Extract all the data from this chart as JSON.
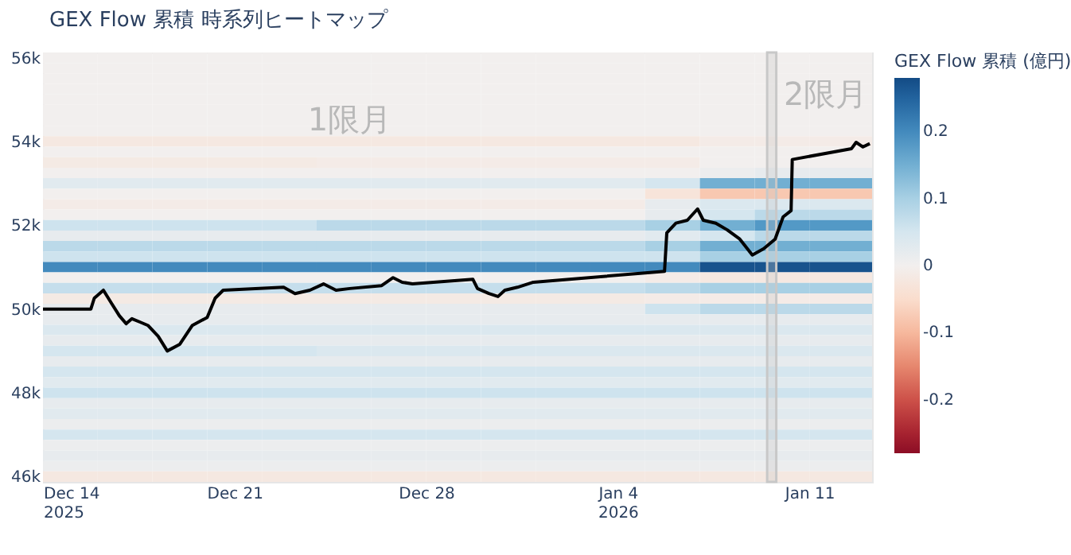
{
  "chart_data": {
    "type": "heatmap",
    "title": "GEX Flow 累積 時系列ヒートマップ",
    "clabel": "GEX Flow 累積 (億円)",
    "x": [
      "2025-12-15",
      "2025-12-17",
      "2025-12-19",
      "2025-12-21",
      "2025-12-23",
      "2025-12-25",
      "2025-12-27",
      "2025-12-29",
      "2025-12-31",
      "2026-01-02",
      "2026-01-04",
      "2026-01-06",
      "2026-01-08",
      "2026-01-10",
      "2026-01-12"
    ],
    "y": [
      56000,
      55750,
      55500,
      55250,
      55000,
      54750,
      54500,
      54250,
      54000,
      53750,
      53500,
      53250,
      53000,
      52750,
      52500,
      52250,
      52000,
      51750,
      51500,
      51250,
      51000,
      50750,
      50500,
      50250,
      50000,
      49750,
      49500,
      49250,
      49000,
      48750,
      48500,
      48250,
      48000,
      47750,
      47500,
      47250,
      47000,
      46750,
      46500,
      46250,
      46000
    ],
    "cells": [
      [
        0,
        0,
        0,
        0,
        0,
        0,
        0,
        0,
        0,
        0,
        0,
        0,
        0,
        0,
        0
      ],
      [
        0,
        0,
        0,
        0,
        0,
        0,
        0,
        0,
        0,
        0,
        0,
        0,
        0,
        0,
        0
      ],
      [
        0,
        0,
        0,
        0,
        0,
        0,
        0,
        0,
        0,
        0,
        0,
        0,
        0,
        0,
        0
      ],
      [
        0,
        0,
        0,
        0,
        0,
        0,
        0,
        0,
        0,
        0,
        0,
        0,
        0,
        0,
        0
      ],
      [
        0,
        0,
        0,
        0,
        0,
        0,
        0,
        0,
        0,
        0,
        0,
        0,
        0,
        0,
        0
      ],
      [
        0,
        0,
        0,
        0,
        0,
        0,
        0,
        0,
        0,
        0,
        0,
        0,
        0,
        0,
        0
      ],
      [
        0,
        0,
        0,
        0,
        0,
        0,
        0,
        0,
        0,
        0,
        0,
        0,
        0,
        0,
        0
      ],
      [
        0,
        0,
        0,
        0,
        0,
        0,
        0,
        0,
        0,
        0,
        0,
        0,
        0,
        0,
        0
      ],
      [
        -0.02,
        -0.02,
        -0.02,
        -0.02,
        -0.02,
        -0.02,
        -0.02,
        -0.02,
        -0.02,
        -0.02,
        -0.02,
        -0.02,
        -0.01,
        -0.01,
        -0.01
      ],
      [
        0,
        0,
        0,
        0,
        0,
        0,
        0,
        0,
        0,
        0,
        0,
        0,
        0,
        0,
        0
      ],
      [
        -0.015,
        -0.015,
        -0.015,
        -0.015,
        -0.015,
        -0.01,
        -0.01,
        -0.01,
        -0.01,
        -0.01,
        -0.01,
        -0.01,
        0,
        0,
        0
      ],
      [
        0,
        0,
        0,
        0,
        0,
        0,
        0,
        0,
        0,
        0,
        0,
        0,
        0.01,
        0.02,
        0.02
      ],
      [
        0.03,
        0.03,
        0.03,
        0.03,
        0.03,
        0.03,
        0.03,
        0.03,
        0.03,
        0.03,
        0.03,
        0.05,
        0.15,
        0.15,
        0.15
      ],
      [
        0,
        0,
        0,
        0,
        0,
        0,
        0,
        0,
        0,
        0,
        0,
        -0.03,
        -0.08,
        -0.08,
        -0.08
      ],
      [
        -0.01,
        -0.01,
        -0.01,
        -0.01,
        -0.01,
        -0.01,
        -0.01,
        -0.01,
        -0.01,
        -0.01,
        -0.01,
        0.02,
        0.04,
        0.04,
        0.04
      ],
      [
        0,
        0,
        0,
        0,
        0,
        0,
        0,
        0,
        0,
        0,
        0,
        0.02,
        0.05,
        0.08,
        0.08
      ],
      [
        0.06,
        0.06,
        0.06,
        0.06,
        0.06,
        0.08,
        0.08,
        0.08,
        0.08,
        0.08,
        0.08,
        0.1,
        0.15,
        0.18,
        0.18
      ],
      [
        0.02,
        0.02,
        0.02,
        0.02,
        0.02,
        0.02,
        0.02,
        0.02,
        0.02,
        0.02,
        0.02,
        0.03,
        0.05,
        0.08,
        0.08
      ],
      [
        0.08,
        0.08,
        0.08,
        0.08,
        0.08,
        0.08,
        0.08,
        0.08,
        0.08,
        0.08,
        0.08,
        0.1,
        0.15,
        0.15,
        0.15
      ],
      [
        0.06,
        0.06,
        0.06,
        0.06,
        0.06,
        0.06,
        0.06,
        0.06,
        0.06,
        0.06,
        0.06,
        0.06,
        0.1,
        0.1,
        0.1
      ],
      [
        0.2,
        0.2,
        0.2,
        0.2,
        0.2,
        0.2,
        0.2,
        0.2,
        0.2,
        0.2,
        0.2,
        0.2,
        0.27,
        0.27,
        0.27
      ],
      [
        0,
        0,
        0,
        0,
        0,
        0,
        0,
        0,
        0,
        0,
        0,
        -0.01,
        -0.02,
        -0.02,
        -0.02
      ],
      [
        0.07,
        0.07,
        0.07,
        0.07,
        0.07,
        0.07,
        0.07,
        0.07,
        0.07,
        0.07,
        0.07,
        0.08,
        0.1,
        0.1,
        0.1
      ],
      [
        -0.015,
        -0.015,
        -0.015,
        -0.015,
        -0.015,
        -0.015,
        -0.015,
        -0.015,
        -0.015,
        -0.015,
        -0.015,
        -0.01,
        -0.01,
        -0.01,
        -0.01
      ],
      [
        0.02,
        0.02,
        0.02,
        0.02,
        0.02,
        0.02,
        0.02,
        0.02,
        0.02,
        0.02,
        0.02,
        0.06,
        0.08,
        0.08,
        0.08
      ],
      [
        0.02,
        0.02,
        0.02,
        0.02,
        0.02,
        0.02,
        0.02,
        0.02,
        0.02,
        0.02,
        0.02,
        0.02,
        0.02,
        0.02,
        0.02
      ],
      [
        0.04,
        0.04,
        0.04,
        0.04,
        0.04,
        0.04,
        0.04,
        0.04,
        0.04,
        0.04,
        0.04,
        0.04,
        0.04,
        0.04,
        0.04
      ],
      [
        0.02,
        0.02,
        0.02,
        0.02,
        0.02,
        0.02,
        0.02,
        0.02,
        0.02,
        0.02,
        0.02,
        0.02,
        0.02,
        0.02,
        0.02
      ],
      [
        0.05,
        0.05,
        0.05,
        0.05,
        0.05,
        0.04,
        0.04,
        0.04,
        0.04,
        0.04,
        0.04,
        0.04,
        0.04,
        0.04,
        0.04
      ],
      [
        0.02,
        0.02,
        0.02,
        0.02,
        0.02,
        0.02,
        0.02,
        0.02,
        0.02,
        0.02,
        0.02,
        0.02,
        0.02,
        0.02,
        0.02
      ],
      [
        0.05,
        0.05,
        0.05,
        0.05,
        0.05,
        0.05,
        0.05,
        0.05,
        0.05,
        0.05,
        0.05,
        0.05,
        0.05,
        0.05,
        0.05
      ],
      [
        0.03,
        0.03,
        0.03,
        0.03,
        0.03,
        0.03,
        0.03,
        0.03,
        0.03,
        0.03,
        0.03,
        0.03,
        0.03,
        0.03,
        0.03
      ],
      [
        0.06,
        0.06,
        0.06,
        0.06,
        0.06,
        0.06,
        0.06,
        0.06,
        0.06,
        0.06,
        0.06,
        0.06,
        0.06,
        0.06,
        0.06
      ],
      [
        0.02,
        0.02,
        0.02,
        0.02,
        0.02,
        0.02,
        0.02,
        0.02,
        0.02,
        0.02,
        0.02,
        0.02,
        0.02,
        0.02,
        0.02
      ],
      [
        0.03,
        0.03,
        0.03,
        0.03,
        0.03,
        0.03,
        0.03,
        0.03,
        0.03,
        0.03,
        0.03,
        0.03,
        0.03,
        0.03,
        0.03
      ],
      [
        0.01,
        0.01,
        0.01,
        0.01,
        0.01,
        0.01,
        0.01,
        0.01,
        0.01,
        0.01,
        0.01,
        0.01,
        0.01,
        0.01,
        0.01
      ],
      [
        0.05,
        0.05,
        0.05,
        0.05,
        0.05,
        0.05,
        0.05,
        0.05,
        0.05,
        0.05,
        0.05,
        0.05,
        0.05,
        0.05,
        0.05
      ],
      [
        0.01,
        0.01,
        0.01,
        0.01,
        0.01,
        0.01,
        0.01,
        0.01,
        0.01,
        0.01,
        0.01,
        0.01,
        0.01,
        0.01,
        0.01
      ],
      [
        0.02,
        0.02,
        0.02,
        0.02,
        0.02,
        0.02,
        0.02,
        0.02,
        0.02,
        0.02,
        0.02,
        0.02,
        0.02,
        0.02,
        0.02
      ],
      [
        0.01,
        0.01,
        0.01,
        0.01,
        0.01,
        0.01,
        0.01,
        0.01,
        0.01,
        0.01,
        0.01,
        0.01,
        0.01,
        0.01,
        0.01
      ],
      [
        -0.02,
        -0.02,
        -0.02,
        -0.02,
        -0.02,
        -0.02,
        -0.02,
        -0.02,
        -0.02,
        -0.02,
        -0.02,
        -0.02,
        -0.02,
        -0.02,
        -0.02
      ]
    ],
    "clim": [
      -0.28,
      0.28
    ],
    "cticks": [
      -0.2,
      -0.1,
      0,
      0.1,
      0.2
    ],
    "xlim": [
      "2025-12-14",
      "2026-01-13T07:00"
    ],
    "xticks": [
      {
        "value": "2025-12-14",
        "label": "Dec 14\n2025"
      },
      {
        "value": "2025-12-21",
        "label": "Dec 21"
      },
      {
        "value": "2025-12-28",
        "label": "Dec 28"
      },
      {
        "value": "2026-01-04",
        "label": "Jan 4\n2026"
      },
      {
        "value": "2026-01-11",
        "label": "Jan 11"
      }
    ],
    "ylim": [
      45875,
      56125
    ],
    "yticks": [
      {
        "value": 46000,
        "label": "46k"
      },
      {
        "value": 48000,
        "label": "48k"
      },
      {
        "value": 50000,
        "label": "50k"
      },
      {
        "value": 52000,
        "label": "52k"
      },
      {
        "value": 54000,
        "label": "54k"
      },
      {
        "value": 56000,
        "label": "56k"
      }
    ],
    "series": [
      {
        "type": "line",
        "color": "#000000",
        "x": [
          "2025-12-14T00:00",
          "2025-12-15T18:00",
          "2025-12-15T21:00",
          "2025-12-16T05:00",
          "2025-12-16T12:00",
          "2025-12-16T19:00",
          "2025-12-17T01:00",
          "2025-12-17T06:00",
          "2025-12-17T13:00",
          "2025-12-17T20:00",
          "2025-12-18T05:00",
          "2025-12-18T13:00",
          "2025-12-19T00:00",
          "2025-12-19T11:00",
          "2025-12-20T00:00",
          "2025-12-20T07:00",
          "2025-12-20T14:00",
          "2025-12-22T19:00",
          "2025-12-23T05:00",
          "2025-12-23T18:00",
          "2025-12-24T06:00",
          "2025-12-24T17:00",
          "2025-12-25T05:00",
          "2025-12-26T09:00",
          "2025-12-26T19:00",
          "2025-12-27T03:00",
          "2025-12-27T12:00",
          "2025-12-29T17:00",
          "2025-12-29T21:00",
          "2025-12-30T07:00",
          "2025-12-30T15:00",
          "2025-12-30T21:00",
          "2025-12-31T08:00",
          "2025-12-31T22:00",
          "2026-01-05T17:00",
          "2026-01-05T19:00",
          "2026-01-06T03:00",
          "2026-01-06T13:00",
          "2026-01-06T22:00",
          "2026-01-07T03:00",
          "2026-01-07T14:00",
          "2026-01-08T00:00",
          "2026-01-08T11:00",
          "2026-01-08T22:00",
          "2026-01-09T08:00",
          "2026-01-09T18:00",
          "2026-01-10T01:00",
          "2026-01-10T08:00",
          "2026-01-10T09:00",
          "2026-01-12T13:00",
          "2026-01-12T17:00",
          "2026-01-12T23:00",
          "2026-01-13T05:00"
        ],
        "values": [
          50000,
          50000,
          50260,
          50450,
          50140,
          49840,
          49650,
          49770,
          49690,
          49610,
          49350,
          49000,
          49160,
          49610,
          49800,
          50260,
          50450,
          50520,
          50370,
          50450,
          50600,
          50450,
          50490,
          50560,
          50750,
          50640,
          50600,
          50710,
          50490,
          50370,
          50300,
          50450,
          50520,
          50640,
          50900,
          51820,
          52050,
          52120,
          52390,
          52120,
          52050,
          51890,
          51670,
          51290,
          51440,
          51670,
          52200,
          52350,
          53570,
          53830,
          53980,
          53870,
          53950
        ]
      }
    ],
    "bands": [
      {
        "axis": "x",
        "from": "2026-01-09T11:00",
        "to": "2026-01-09T19:00",
        "color": "#c8c8c8"
      }
    ],
    "annotations": [
      "1限月",
      "2限月"
    ]
  }
}
